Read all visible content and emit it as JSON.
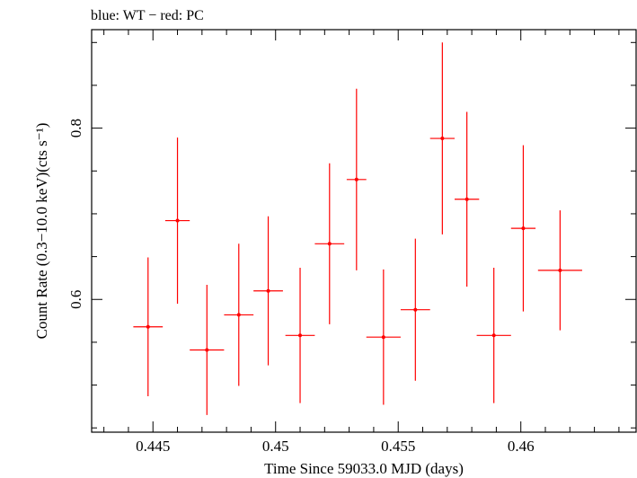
{
  "chart_data": {
    "type": "scatter",
    "title": "blue: WT − red: PC",
    "xlabel": "Time Since 59033.0 MJD (days)",
    "ylabel": "Count Rate (0.3−10.0 keV)(cts s⁻¹)",
    "xlim": [
      0.4425,
      0.4647
    ],
    "ylim": [
      0.445,
      0.915
    ],
    "x_ticks": [
      "0.445",
      "0.45",
      "0.455",
      "0.46"
    ],
    "y_ticks": [
      "0.6",
      "0.8"
    ],
    "grid": false,
    "series": [
      {
        "color": "#ff0000",
        "points": [
          {
            "x": 0.4448,
            "xerr": 0.0006,
            "y": 0.568,
            "yerr": 0.081
          },
          {
            "x": 0.446,
            "xerr": 0.0005,
            "y": 0.692,
            "yerr": 0.097
          },
          {
            "x": 0.4472,
            "xerr": 0.0007,
            "y": 0.541,
            "yerr": 0.076
          },
          {
            "x": 0.4485,
            "xerr": 0.0006,
            "y": 0.582,
            "yerr": 0.083
          },
          {
            "x": 0.4497,
            "xerr": 0.0006,
            "y": 0.61,
            "yerr": 0.087
          },
          {
            "x": 0.451,
            "xerr": 0.0006,
            "y": 0.558,
            "yerr": 0.079
          },
          {
            "x": 0.4522,
            "xerr": 0.0006,
            "y": 0.665,
            "yerr": 0.094
          },
          {
            "x": 0.4533,
            "xerr": 0.0004,
            "y": 0.74,
            "yerr": 0.106
          },
          {
            "x": 0.4544,
            "xerr": 0.0007,
            "y": 0.556,
            "yerr": 0.079
          },
          {
            "x": 0.4557,
            "xerr": 0.0006,
            "y": 0.588,
            "yerr": 0.083
          },
          {
            "x": 0.4568,
            "xerr": 0.0005,
            "y": 0.788,
            "yerr": 0.112
          },
          {
            "x": 0.4578,
            "xerr": 0.0005,
            "y": 0.717,
            "yerr": 0.102
          },
          {
            "x": 0.4589,
            "xerr": 0.0007,
            "y": 0.558,
            "yerr": 0.079
          },
          {
            "x": 0.4601,
            "xerr": 0.0005,
            "y": 0.683,
            "yerr": 0.097
          },
          {
            "x": 0.4616,
            "xerr": 0.0009,
            "y": 0.634,
            "yerr": 0.07
          }
        ]
      }
    ]
  }
}
